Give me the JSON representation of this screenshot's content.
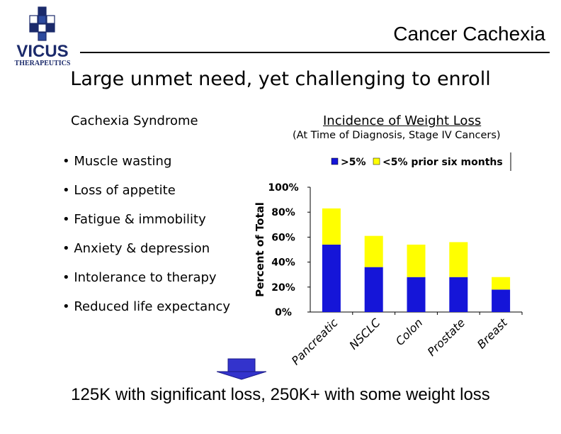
{
  "brand": {
    "logo_name": "VICUS",
    "logo_sub": "THERAPEUTICS",
    "colors": {
      "navy": "#1b2a6b",
      "blue": "#2d4a9e"
    }
  },
  "header": {
    "title": "Cancer Cachexia"
  },
  "subtitle": "Large unmet need, yet challenging to enroll",
  "syndrome": {
    "heading": "Cachexia Syndrome",
    "items": [
      "Muscle wasting",
      "Loss of appetite",
      "Fatigue & immobility",
      "Anxiety & depression",
      "Intolerance to therapy",
      "Reduced life expectancy"
    ]
  },
  "chart_heading": {
    "title": "Incidence of Weight Loss",
    "subtitle": "(At Time of Diagnosis, Stage IV Cancers)"
  },
  "chart_data": {
    "type": "bar",
    "stacked": true,
    "title": "Incidence of Weight Loss",
    "subtitle": "(At Time of Diagnosis, Stage IV Cancers)",
    "categories": [
      "Pancreatic",
      "NSCLC",
      "Colon",
      "Prostate",
      "Breast"
    ],
    "series": [
      {
        "name": ">5%",
        "color": "#1515d8",
        "values": [
          54,
          36,
          28,
          28,
          18
        ]
      },
      {
        "name": "<5% prior six months",
        "color": "#ffff00",
        "values": [
          29,
          25,
          26,
          28,
          10
        ]
      }
    ],
    "xlabel": "",
    "ylabel": "Percent of Total",
    "ylim": [
      0,
      100
    ],
    "yticks": [
      "0%",
      "20%",
      "40%",
      "60%",
      "80%",
      "100%"
    ],
    "legend": "top-right",
    "grid": false
  },
  "footer": {
    "note": "125K with significant loss, 250K+ with some weight loss"
  },
  "arrow": {
    "icon": "down-arrow-icon",
    "color": "#3333cc"
  }
}
